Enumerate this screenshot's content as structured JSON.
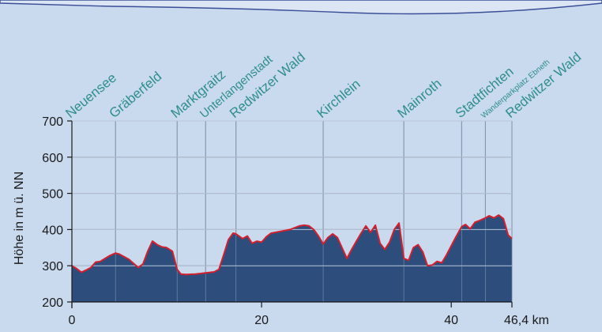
{
  "chart_data": {
    "type": "area",
    "title": "",
    "xlabel": "",
    "ylabel": "Höhe in m ü. NN",
    "x_unit": "km",
    "xlim": [
      0,
      46.4
    ],
    "ylim": [
      200,
      700
    ],
    "y_ticks": [
      200,
      300,
      400,
      500,
      600,
      700
    ],
    "x_ticks": [
      {
        "value": 0,
        "label": "0"
      },
      {
        "value": 20,
        "label": "20"
      },
      {
        "value": 40,
        "label": "40"
      },
      {
        "value": 46.4,
        "label": "46,4 km"
      }
    ],
    "grid": true,
    "waypoints": [
      {
        "name": "Neuensee",
        "km": 0.0,
        "size": "large"
      },
      {
        "name": "Gräberfeld",
        "km": 4.6,
        "size": "large"
      },
      {
        "name": "Marktgraitz",
        "km": 11.1,
        "size": "large"
      },
      {
        "name": "Unterlangenstadt",
        "km": 14.1,
        "size": "medium"
      },
      {
        "name": "Redwitzer Wald",
        "km": 17.3,
        "size": "large"
      },
      {
        "name": "Kirchlein",
        "km": 26.5,
        "size": "large"
      },
      {
        "name": "Mainroth",
        "km": 35.0,
        "size": "large"
      },
      {
        "name": "Stadtfichten",
        "km": 41.1,
        "size": "large"
      },
      {
        "name": "Wanderparkplatz Ebneth",
        "km": 43.6,
        "size": "small"
      },
      {
        "name": "Redwitzer Wald",
        "km": 46.4,
        "size": "large"
      }
    ],
    "series": [
      {
        "x": [
          0,
          0.5,
          1.0,
          1.5,
          2.0,
          2.5,
          3.0,
          3.5,
          4.0,
          4.6,
          5.0,
          6.0,
          7.0,
          7.5,
          8.0,
          8.5,
          9.0,
          9.5,
          10.0,
          10.6,
          11.1,
          11.5,
          12.0,
          13.0,
          14.0,
          15.0,
          15.5,
          16.0,
          16.5,
          17.0,
          17.3,
          18.0,
          18.5,
          19.0,
          19.5,
          20.0,
          20.5,
          21.0,
          22.0,
          23.0,
          24.0,
          24.5,
          25.0,
          25.5,
          26.0,
          26.5,
          27.0,
          27.5,
          28.0,
          29.0,
          29.5,
          30.0,
          30.5,
          31.0,
          31.5,
          32.0,
          32.5,
          33.0,
          33.5,
          34.0,
          34.5,
          35.0,
          35.5,
          36.0,
          36.5,
          37.0,
          37.5,
          38.0,
          38.5,
          39.0,
          39.5,
          40.0,
          40.5,
          41.1,
          41.5,
          42.0,
          42.5,
          43.0,
          43.6,
          44.0,
          44.5,
          45.0,
          45.5,
          46.0,
          46.4
        ],
        "y": [
          300,
          292,
          282,
          288,
          295,
          310,
          312,
          320,
          328,
          335,
          332,
          318,
          295,
          305,
          340,
          368,
          358,
          352,
          350,
          340,
          290,
          277,
          276,
          277,
          280,
          283,
          290,
          330,
          372,
          390,
          388,
          375,
          382,
          362,
          368,
          365,
          380,
          390,
          395,
          400,
          410,
          412,
          410,
          400,
          382,
          360,
          378,
          388,
          378,
          320,
          345,
          368,
          390,
          410,
          392,
          412,
          362,
          345,
          365,
          400,
          418,
          320,
          315,
          350,
          358,
          338,
          300,
          302,
          312,
          308,
          330,
          355,
          380,
          408,
          414,
          402,
          420,
          425,
          432,
          438,
          432,
          440,
          430,
          385,
          375
        ]
      }
    ]
  }
}
